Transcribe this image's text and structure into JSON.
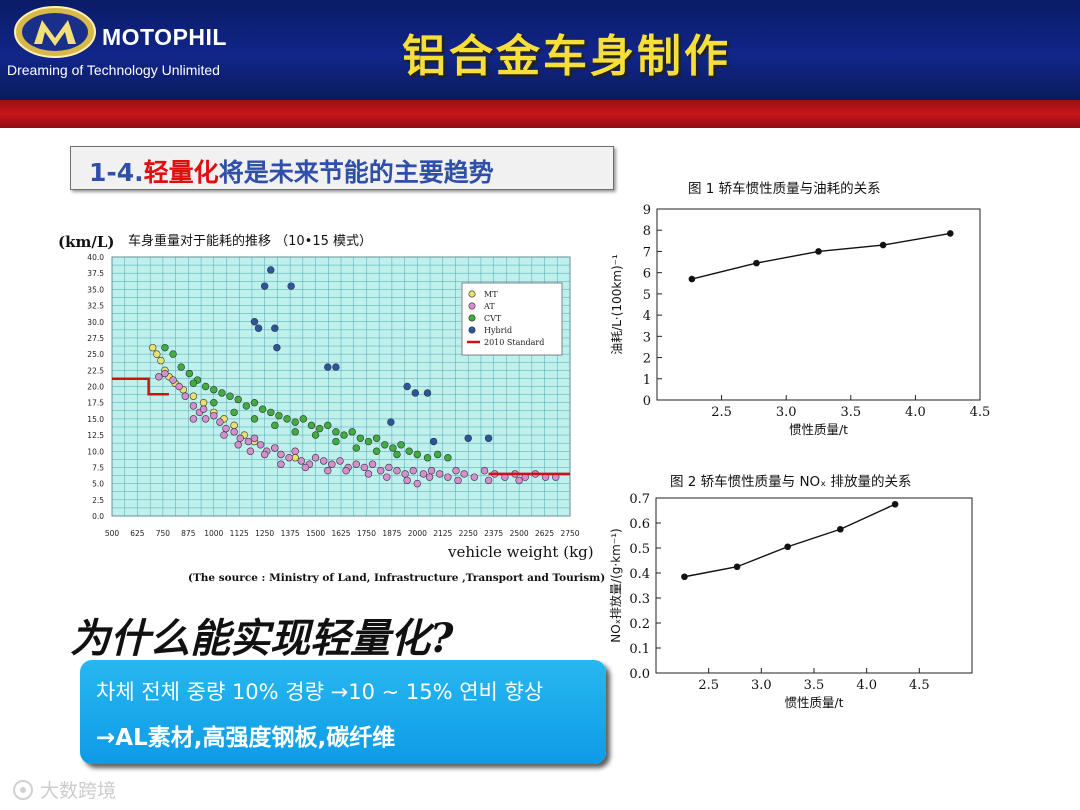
{
  "header": {
    "brand": "MOTOPHIL",
    "tagline": "Dreaming of Technology Unlimited",
    "title": "铝合金车身制作"
  },
  "subtitle": {
    "prefix": "1-4.",
    "highlight": "轻量化",
    "suffix": "将是未来节能的主要趋势"
  },
  "question": "为什么能实现轻量化?",
  "answer": {
    "line1": "차체 전체 중량 10% 경량 →10 ~ 15% 연비 향상",
    "line2": "→AL素材,高强度钢板,碳纤维"
  },
  "watermark": "大数跨境",
  "colors": {
    "header_blue": "#10268a",
    "red_band": "#c7161c",
    "title_yellow": "#f6df3a",
    "answer_blue": "#14a6ea",
    "plot_bg": "#bff0ec",
    "standard_red": "#cc1111"
  },
  "chart_data": [
    {
      "type": "scatter",
      "unit_label": "(km/L)",
      "title": "车身重量对于能耗的推移 （10•15 模式）",
      "xlabel": "vehicle weight (kg)",
      "ylabel": "",
      "source": "(The source : Ministry of Land, Infrastructure ,Transport and Tourism)",
      "xlim": [
        500,
        2750
      ],
      "ylim": [
        0,
        40
      ],
      "x_ticks": [
        "500",
        "625",
        "750",
        "875",
        "1000",
        "1125",
        "1250",
        "1375",
        "1500",
        "1625",
        "1750",
        "1875",
        "2000",
        "2125",
        "2250",
        "2375",
        "2500",
        "2625",
        "2750"
      ],
      "y_ticks": [
        "0.0",
        "2.5",
        "5.0",
        "7.5",
        "10.0",
        "12.5",
        "15.0",
        "17.5",
        "20.0",
        "22.5",
        "25.0",
        "27.5",
        "30.0",
        "32.5",
        "35.0",
        "37.5",
        "40.0"
      ],
      "grid": true,
      "legend_position": "top-right",
      "series": [
        {
          "name": "MT",
          "color": "#e8e070",
          "points": [
            [
              700,
              26
            ],
            [
              720,
              25
            ],
            [
              740,
              24
            ],
            [
              760,
              22.5
            ],
            [
              780,
              21.5
            ],
            [
              810,
              20.5
            ],
            [
              850,
              19.5
            ],
            [
              900,
              18.5
            ],
            [
              950,
              17.5
            ],
            [
              1000,
              16
            ],
            [
              1050,
              15
            ],
            [
              1100,
              14
            ],
            [
              1150,
              12.5
            ],
            [
              1200,
              11.5
            ],
            [
              1300,
              10.5
            ],
            [
              1400,
              9
            ]
          ]
        },
        {
          "name": "AT",
          "color": "#d58fd0",
          "points": [
            [
              730,
              21.5
            ],
            [
              760,
              22
            ],
            [
              800,
              21
            ],
            [
              830,
              20
            ],
            [
              860,
              18.5
            ],
            [
              900,
              17
            ],
            [
              930,
              16
            ],
            [
              960,
              15
            ],
            [
              1000,
              15.5
            ],
            [
              1030,
              14.5
            ],
            [
              1060,
              13.5
            ],
            [
              1100,
              13
            ],
            [
              1130,
              12
            ],
            [
              1170,
              11.5
            ],
            [
              1200,
              12
            ],
            [
              1230,
              11
            ],
            [
              1260,
              10
            ],
            [
              1300,
              10.5
            ],
            [
              1330,
              9.5
            ],
            [
              1370,
              9
            ],
            [
              1400,
              10
            ],
            [
              1430,
              8.5
            ],
            [
              1470,
              8
            ],
            [
              1500,
              9
            ],
            [
              1540,
              8.5
            ],
            [
              1580,
              8
            ],
            [
              1620,
              8.5
            ],
            [
              1660,
              7.5
            ],
            [
              1700,
              8
            ],
            [
              1740,
              7.5
            ],
            [
              1780,
              8
            ],
            [
              1820,
              7
            ],
            [
              1860,
              7.5
            ],
            [
              1900,
              7
            ],
            [
              1940,
              6.5
            ],
            [
              1980,
              7
            ],
            [
              2000,
              5
            ],
            [
              2030,
              6.5
            ],
            [
              2070,
              7
            ],
            [
              2110,
              6.5
            ],
            [
              2150,
              6
            ],
            [
              2190,
              7
            ],
            [
              2230,
              6.5
            ],
            [
              2280,
              6
            ],
            [
              2330,
              7
            ],
            [
              2380,
              6.5
            ],
            [
              2430,
              6
            ],
            [
              2480,
              6.5
            ],
            [
              2530,
              6
            ],
            [
              2580,
              6.5
            ],
            [
              2630,
              6
            ],
            [
              2680,
              6
            ],
            [
              900,
              15
            ],
            [
              950,
              16.5
            ],
            [
              1050,
              12.5
            ],
            [
              1120,
              11
            ],
            [
              1180,
              10
            ],
            [
              1250,
              9.5
            ],
            [
              1330,
              8
            ],
            [
              1450,
              7.5
            ],
            [
              1560,
              7
            ],
            [
              1650,
              7
            ],
            [
              1760,
              6.5
            ],
            [
              1850,
              6
            ],
            [
              1950,
              5.5
            ],
            [
              2060,
              6
            ],
            [
              2200,
              5.5
            ],
            [
              2350,
              5.5
            ],
            [
              2500,
              5.5
            ]
          ]
        },
        {
          "name": "CVT",
          "color": "#3fae3f",
          "points": [
            [
              760,
              26
            ],
            [
              800,
              25
            ],
            [
              840,
              23
            ],
            [
              880,
              22
            ],
            [
              920,
              21
            ],
            [
              960,
              20
            ],
            [
              1000,
              19.5
            ],
            [
              1040,
              19
            ],
            [
              1080,
              18.5
            ],
            [
              1120,
              18
            ],
            [
              1160,
              17
            ],
            [
              1200,
              17.5
            ],
            [
              1240,
              16.5
            ],
            [
              1280,
              16
            ],
            [
              1320,
              15.5
            ],
            [
              1360,
              15
            ],
            [
              1400,
              14.5
            ],
            [
              1440,
              15
            ],
            [
              1480,
              14
            ],
            [
              1520,
              13.5
            ],
            [
              1560,
              14
            ],
            [
              1600,
              13
            ],
            [
              1640,
              12.5
            ],
            [
              1680,
              13
            ],
            [
              1720,
              12
            ],
            [
              1760,
              11.5
            ],
            [
              1800,
              12
            ],
            [
              1840,
              11
            ],
            [
              1880,
              10.5
            ],
            [
              1920,
              11
            ],
            [
              1960,
              10
            ],
            [
              2000,
              9.5
            ],
            [
              2050,
              9
            ],
            [
              2100,
              9.5
            ],
            [
              2150,
              9
            ],
            [
              900,
              20.5
            ],
            [
              1000,
              17.5
            ],
            [
              1100,
              16
            ],
            [
              1200,
              15
            ],
            [
              1300,
              14
            ],
            [
              1400,
              13
            ],
            [
              1500,
              12.5
            ],
            [
              1600,
              11.5
            ],
            [
              1700,
              10.5
            ],
            [
              1800,
              10
            ],
            [
              1900,
              9.5
            ]
          ]
        },
        {
          "name": "Hybrid",
          "color": "#2a56a0",
          "points": [
            [
              1200,
              30
            ],
            [
              1220,
              29
            ],
            [
              1250,
              35.5
            ],
            [
              1280,
              38
            ],
            [
              1300,
              29
            ],
            [
              1310,
              26
            ],
            [
              1380,
              35.5
            ],
            [
              1560,
              23
            ],
            [
              1600,
              23
            ],
            [
              1950,
              20
            ],
            [
              1990,
              19
            ],
            [
              2050,
              19
            ],
            [
              1870,
              14.5
            ],
            [
              2080,
              11.5
            ],
            [
              2250,
              12
            ],
            [
              2350,
              12
            ]
          ]
        }
      ],
      "standard": {
        "name": "2010 Standard",
        "color": "#cc1111",
        "steps": [
          [
            500,
            21.2
          ],
          [
            680,
            21.2
          ],
          [
            680,
            18.8
          ],
          [
            780,
            18.8
          ]
        ],
        "tail": [
          [
            2350,
            6.5
          ],
          [
            2750,
            6.5
          ]
        ]
      }
    },
    {
      "type": "line",
      "title": "图 1  轿车惯性质量与油耗的关系",
      "xlabel": "惯性质量/t",
      "ylabel": "油耗/L·(100km)⁻¹",
      "xlim": [
        2.0,
        4.5
      ],
      "ylim": [
        0,
        9
      ],
      "x_ticks": [
        "2.5",
        "3.0",
        "3.5",
        "4.0",
        "4.5"
      ],
      "y_ticks": [
        "0",
        "1",
        "2",
        "3",
        "4",
        "5",
        "6",
        "7",
        "8",
        "9"
      ],
      "grid": false,
      "x": [
        2.27,
        2.77,
        3.25,
        3.75,
        4.27
      ],
      "y": [
        5.7,
        6.45,
        7.0,
        7.3,
        7.85
      ]
    },
    {
      "type": "line",
      "title": "图 2  轿车惯性质量与 NOₓ 排放量的关系",
      "xlabel": "惯性质量/t",
      "ylabel": "NOₓ排放量/(g·km⁻¹)",
      "xlim": [
        2.0,
        5.0
      ],
      "ylim": [
        0,
        0.7
      ],
      "x_ticks": [
        "2.5",
        "3.0",
        "3.5",
        "4.0",
        "4.5"
      ],
      "y_ticks": [
        "0.0",
        "0.1",
        "0.2",
        "0.3",
        "0.4",
        "0.5",
        "0.6",
        "0.7"
      ],
      "grid": false,
      "x": [
        2.27,
        2.77,
        3.25,
        3.75,
        4.27
      ],
      "y": [
        0.385,
        0.425,
        0.505,
        0.575,
        0.675
      ]
    }
  ]
}
